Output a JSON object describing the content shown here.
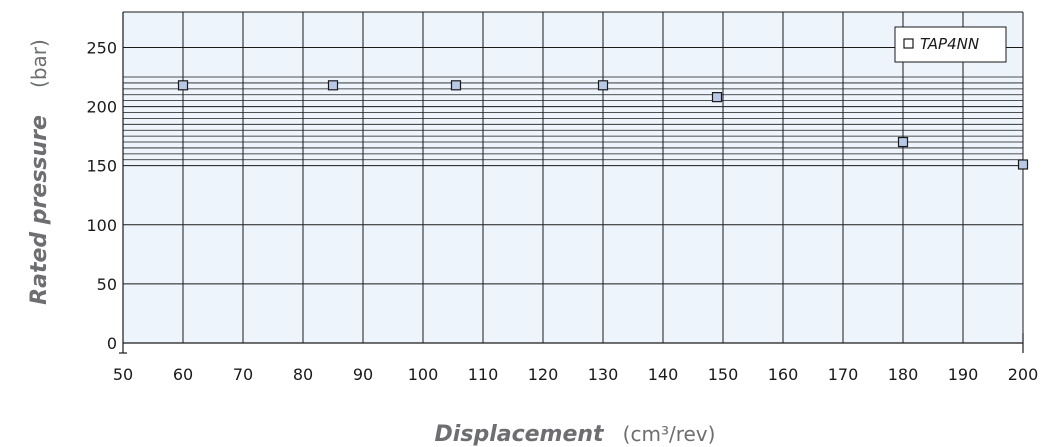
{
  "chart_data": {
    "type": "scatter",
    "title": "",
    "xlabel": "Displacement",
    "xlabel_unit": "(cm³/rev)",
    "ylabel": "Rated pressure",
    "ylabel_unit": "(bar)",
    "xlim": [
      50,
      200
    ],
    "ylim": [
      0,
      280
    ],
    "x_ticks": [
      50,
      60,
      70,
      80,
      90,
      100,
      110,
      120,
      130,
      140,
      150,
      160,
      170,
      180,
      190,
      200
    ],
    "y_ticks": [
      0,
      50,
      100,
      150,
      200,
      250
    ],
    "grid": true,
    "dense_y_grid_range": [
      150,
      225
    ],
    "legend_position": "top-right",
    "series": [
      {
        "name": "TAP4NN",
        "marker": "square",
        "color": "#b7c9e6",
        "x": [
          60,
          85,
          105.5,
          130,
          149,
          180,
          200
        ],
        "y": [
          218,
          218,
          218,
          218,
          208,
          170,
          151
        ]
      }
    ],
    "colors": {
      "plot_background": "#eef4fb",
      "grid": "#1a1a1a",
      "axis_title": "#6d6e71",
      "marker_fill": "#b7c9e6",
      "marker_stroke": "#1a1a1a"
    }
  }
}
